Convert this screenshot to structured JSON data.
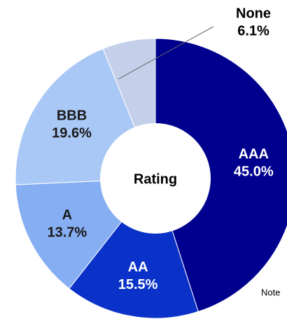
{
  "chart_data": {
    "type": "donut",
    "center_label": "Rating",
    "categories": [
      "AAA",
      "AA",
      "A",
      "BBB",
      "None"
    ],
    "values": [
      45.0,
      15.5,
      13.7,
      19.6,
      6.1
    ],
    "value_labels": [
      "45.0%",
      "15.5%",
      "13.7%",
      "19.6%",
      "6.1%"
    ],
    "colors": [
      "#00008f",
      "#0a32c8",
      "#86aef2",
      "#aac8f5",
      "#c4d0ea"
    ],
    "note": "Note"
  }
}
